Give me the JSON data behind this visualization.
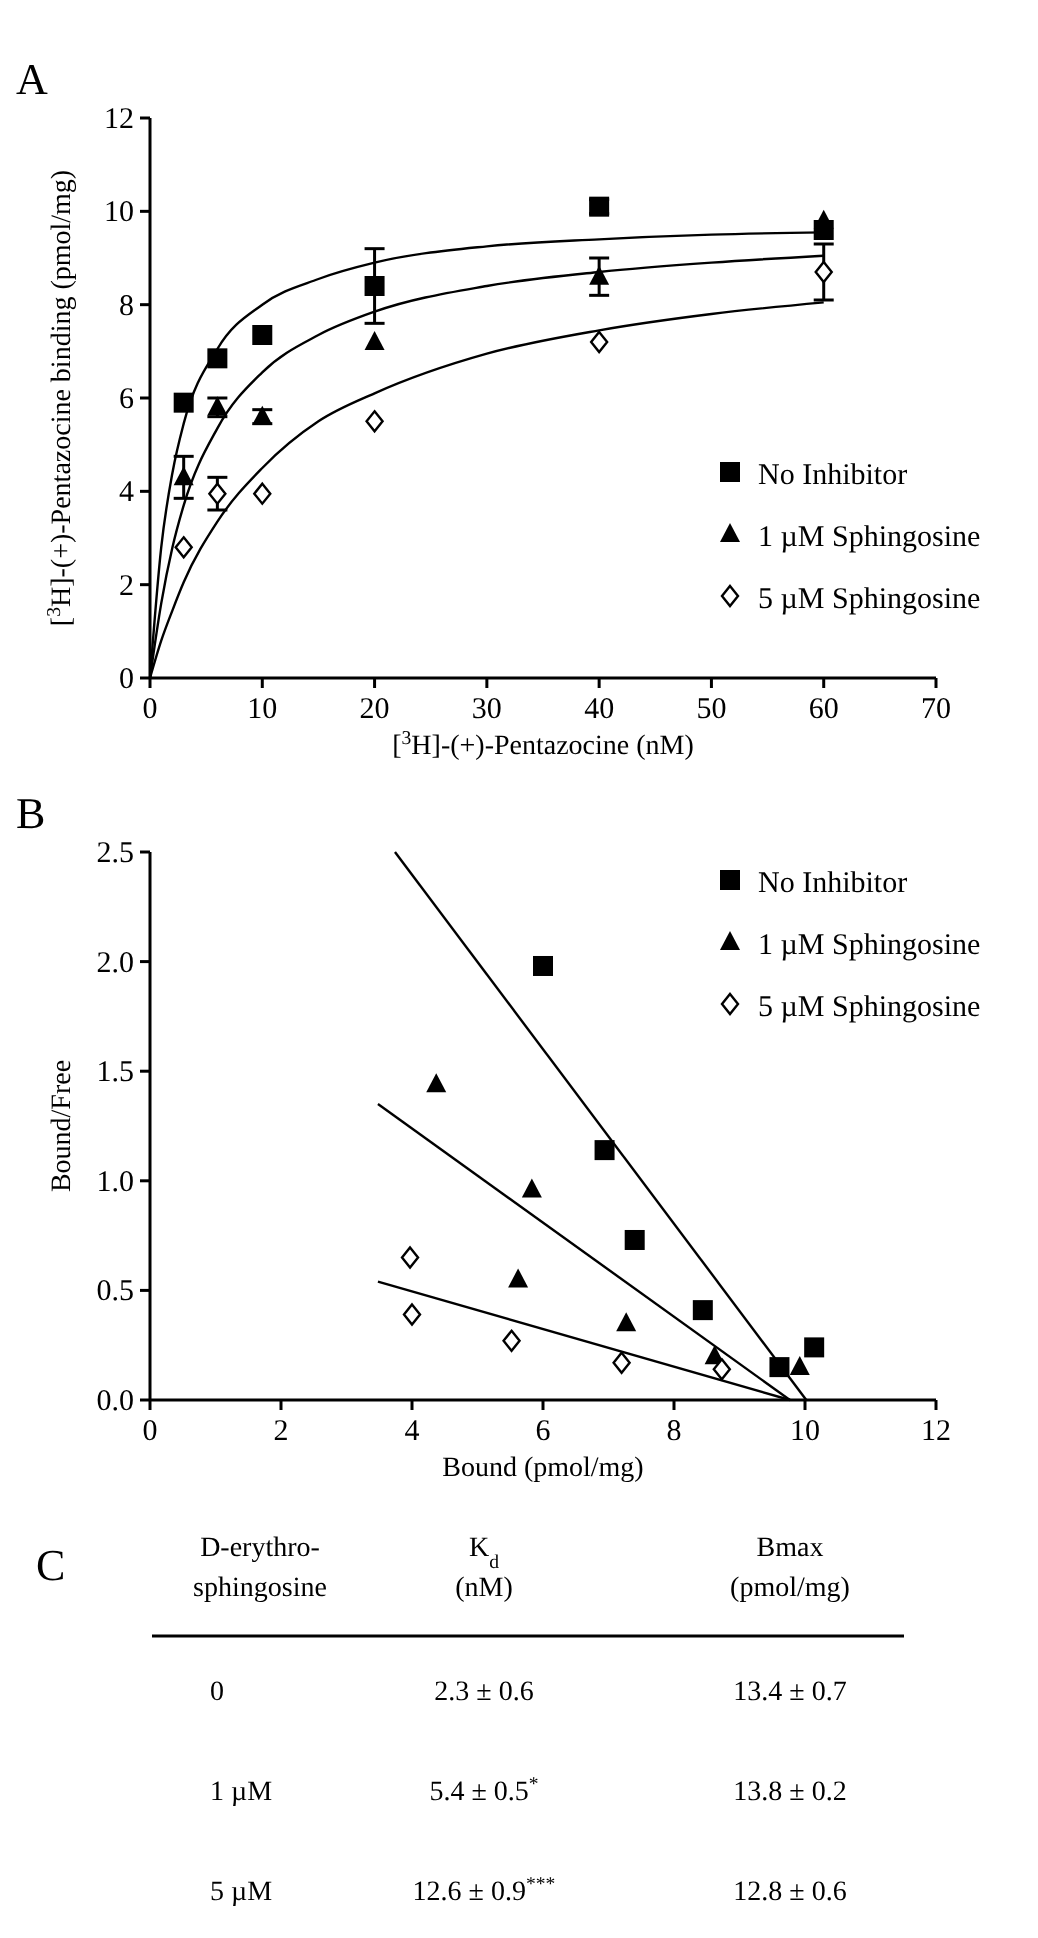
{
  "chart_data": [
    {
      "type": "scatter",
      "title": "A",
      "xlabel": "[$^{3}$H]-(+)-Pentazocine (nM)",
      "ylabel": "[$^{3}$H]-(+)-Pentazocine binding (pmol/mg)",
      "xlim": [
        0,
        70
      ],
      "xticks": [
        0,
        10,
        20,
        30,
        40,
        50,
        60,
        70
      ],
      "ylim": [
        0,
        12
      ],
      "yticks": [
        0,
        2,
        4,
        6,
        8,
        10,
        12
      ],
      "legend": "right",
      "grid": false,
      "series": [
        {
          "name": "No Inhibitor",
          "color": "#000000",
          "marker": "square",
          "x": [
            3,
            6,
            10,
            20,
            40,
            60
          ],
          "values": [
            5.9,
            6.85,
            7.35,
            8.4,
            10.1,
            9.6
          ],
          "errors": [
            null,
            null,
            null,
            0.8,
            0.15,
            null
          ]
        },
        {
          "name": "1 µM Sphingosine",
          "color": "#000000",
          "marker": "triangle",
          "x": [
            3,
            6,
            10,
            20,
            40,
            60
          ],
          "values": [
            4.3,
            5.8,
            5.6,
            7.2,
            8.6,
            9.8
          ],
          "errors": [
            0.45,
            0.2,
            0.15,
            null,
            0.4,
            null
          ]
        },
        {
          "name": "5 µM Sphingosine",
          "color": "#000000",
          "marker": "diamond",
          "x": [
            3,
            6,
            10,
            20,
            40,
            60
          ],
          "values": [
            2.8,
            3.95,
            3.95,
            5.5,
            7.2,
            8.7
          ],
          "errors": [
            null,
            0.35,
            null,
            null,
            null,
            0.6
          ]
        },
        {
          "type": "line",
          "color": "#000000",
          "x": [
            0,
            1,
            2,
            3,
            6,
            10,
            15,
            20,
            30,
            40,
            50,
            60
          ],
          "values": [
            0,
            2.8,
            4.4,
            5.45,
            7.05,
            8.0,
            8.55,
            8.9,
            9.25,
            9.4,
            9.5,
            9.55
          ]
        },
        {
          "type": "line",
          "color": "#000000",
          "x": [
            0,
            1,
            2,
            3,
            6,
            10,
            15,
            20,
            30,
            40,
            50,
            60
          ],
          "values": [
            0,
            1.6,
            2.8,
            3.7,
            5.35,
            6.55,
            7.35,
            7.85,
            8.4,
            8.7,
            8.9,
            9.05
          ]
        },
        {
          "type": "line",
          "color": "#000000",
          "x": [
            0,
            1,
            2,
            3,
            6,
            10,
            15,
            20,
            30,
            40,
            50,
            60
          ],
          "values": [
            0,
            0.8,
            1.45,
            2.05,
            3.35,
            4.5,
            5.5,
            6.1,
            6.95,
            7.45,
            7.8,
            8.05
          ]
        }
      ]
    },
    {
      "type": "scatter",
      "title": "B",
      "xlabel": "Bound (pmol/mg)",
      "ylabel": "Bound/Free",
      "xlim": [
        0,
        12
      ],
      "xticks": [
        0,
        2,
        4,
        6,
        8,
        10,
        12
      ],
      "ylim": [
        0,
        2.5
      ],
      "yticks": [
        {
          "value": 0,
          "label": "0.0"
        },
        0.5,
        {
          "value": 1,
          "label": "1.0"
        },
        1.5,
        {
          "value": 2,
          "label": "2.0"
        },
        2.5
      ],
      "legend": "top right",
      "grid": false,
      "series": [
        {
          "name": "No Inhibitor",
          "color": "#000000",
          "marker": "square",
          "x": [
            6.0,
            6.94,
            7.4,
            8.44,
            9.61,
            10.14
          ],
          "values": [
            1.98,
            1.14,
            0.73,
            0.41,
            0.15,
            0.24
          ]
        },
        {
          "name": "1 µM Sphingosine",
          "color": "#000000",
          "marker": "triangle",
          "x": [
            4.37,
            5.83,
            5.62,
            7.27,
            8.62,
            9.92
          ],
          "values": [
            1.44,
            0.96,
            0.55,
            0.35,
            0.2,
            0.15
          ]
        },
        {
          "name": "5 µM Sphingosine",
          "color": "#000000",
          "marker": "diamond",
          "x": [
            3.97,
            4.0,
            5.52,
            7.2,
            8.73
          ],
          "values": [
            0.65,
            0.39,
            0.27,
            0.17,
            0.14
          ]
        },
        {
          "type": "line",
          "color": "#000000",
          "x": [
            3.74,
            10.02
          ],
          "values": [
            2.5,
            0
          ]
        },
        {
          "type": "line",
          "color": "#000000",
          "x": [
            3.48,
            9.77
          ],
          "values": [
            1.35,
            0
          ]
        },
        {
          "type": "line",
          "color": "#000000",
          "x": [
            3.48,
            9.77
          ],
          "values": [
            0.54,
            0
          ]
        }
      ]
    },
    {
      "type": "other",
      "title": "C",
      "annotations": [
        "D-erythro-\nsphingosine",
        "K$_{d}$\n(nM)",
        "Bmax\n(pmol/mg)",
        "0",
        "2.3 ± 0.6",
        "13.4 ± 0.7",
        "1 µM",
        "5.4 ± 0.5$^{*}$",
        "13.8 ± 0.2",
        "5 µM",
        "12.6 ± 0.9$^{***}$",
        "12.8 ± 0.6"
      ]
    }
  ]
}
